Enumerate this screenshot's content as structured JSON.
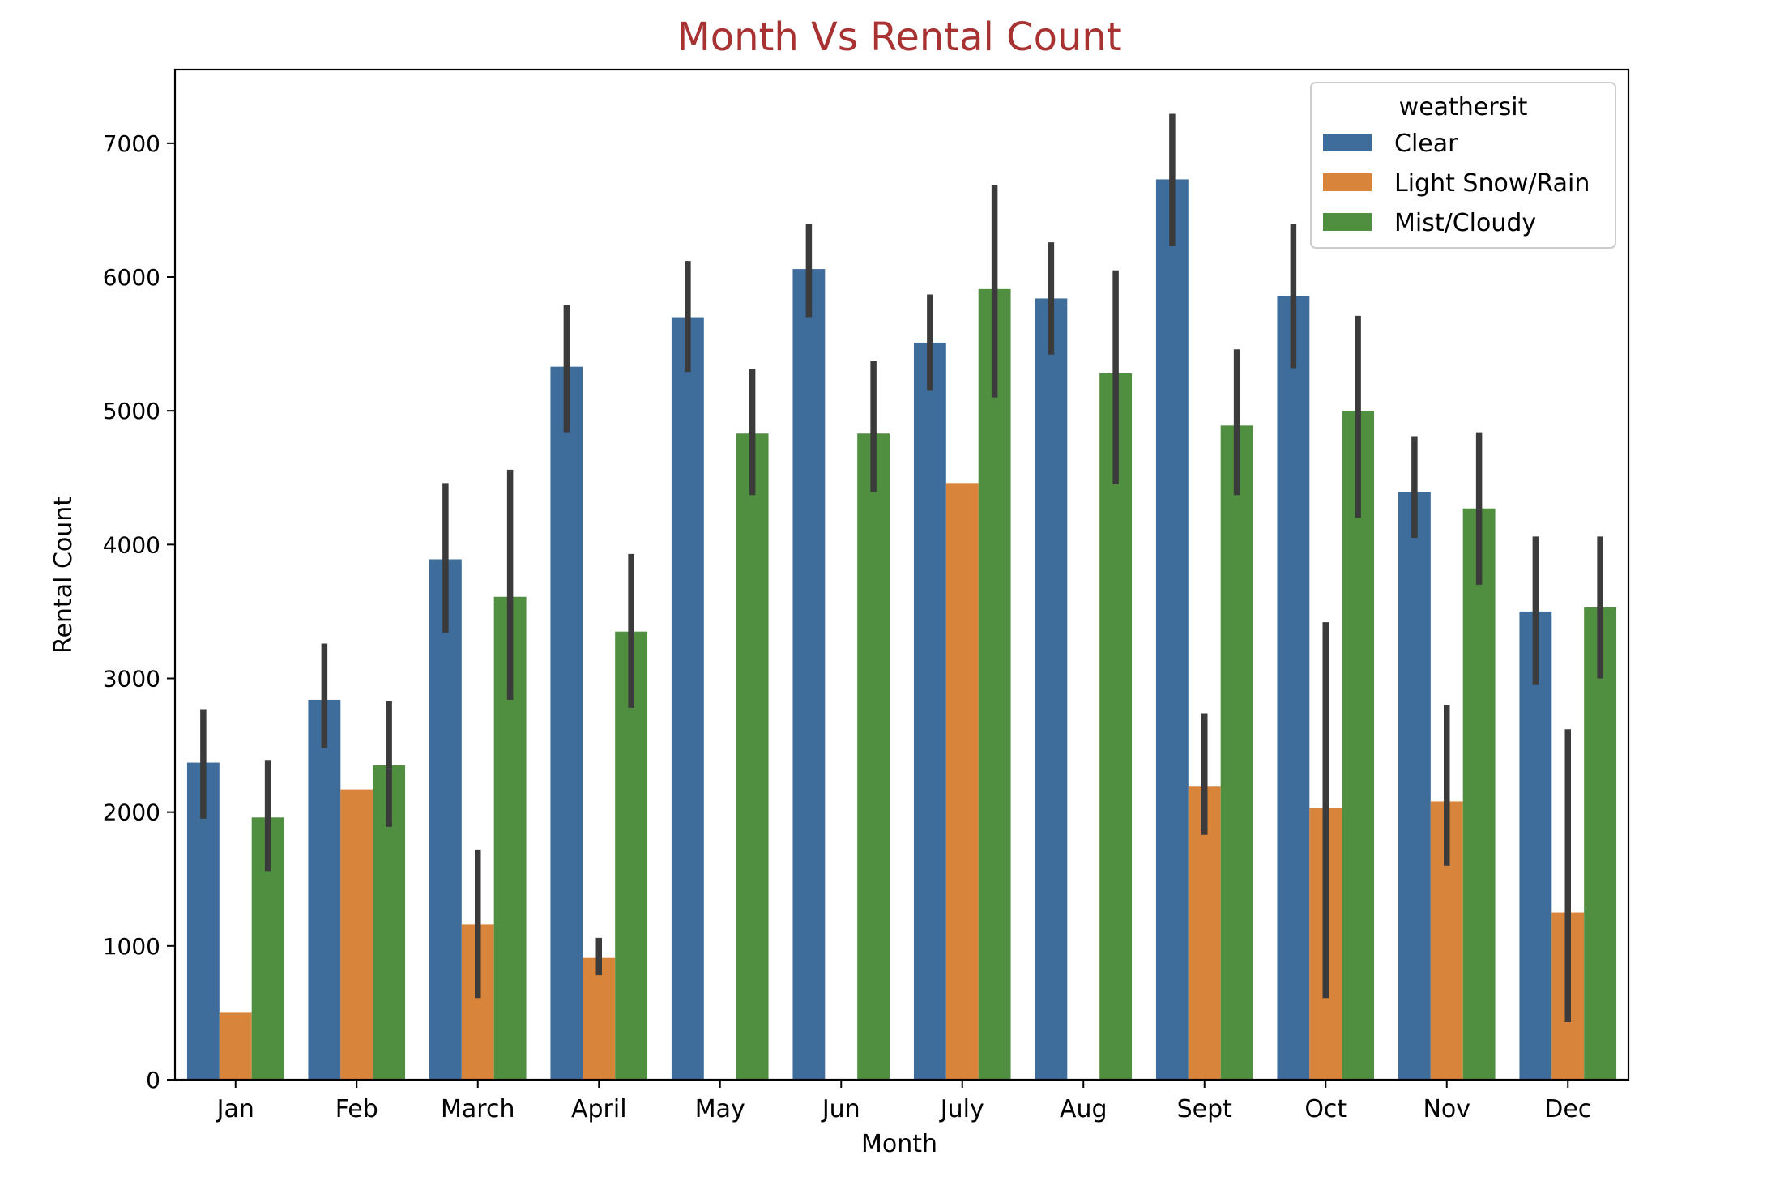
{
  "chart_data": {
    "type": "bar",
    "title": "Month Vs Rental Count",
    "title_color": "#a83232",
    "xlabel": "Month",
    "ylabel": "Rental Count",
    "ylim": [
      0,
      7550
    ],
    "yticks": [
      0,
      1000,
      2000,
      3000,
      4000,
      5000,
      6000,
      7000
    ],
    "categories": [
      "Jan",
      "Feb",
      "March",
      "April",
      "May",
      "Jun",
      "July",
      "Aug",
      "Sept",
      "Oct",
      "Nov",
      "Dec"
    ],
    "legend": {
      "title": "weathersit",
      "position": "top-right"
    },
    "series": [
      {
        "name": "Clear",
        "color": "#3e6d9c",
        "values": [
          2370,
          2840,
          3890,
          5330,
          5700,
          6060,
          5510,
          5840,
          6730,
          5860,
          4390,
          3500
        ],
        "ci": [
          [
            1950,
            2770
          ],
          [
            2480,
            3260
          ],
          [
            3340,
            4460
          ],
          [
            4840,
            5790
          ],
          [
            5290,
            6120
          ],
          [
            5700,
            6400
          ],
          [
            5150,
            5870
          ],
          [
            5420,
            6260
          ],
          [
            6230,
            7220
          ],
          [
            5320,
            6400
          ],
          [
            4050,
            4810
          ],
          [
            2950,
            4060
          ]
        ]
      },
      {
        "name": "Light Snow/Rain",
        "color": "#d9843b",
        "values": [
          500,
          2170,
          1160,
          910,
          null,
          null,
          4460,
          null,
          2190,
          2030,
          2080,
          1250
        ],
        "ci": [
          null,
          null,
          [
            610,
            1720
          ],
          [
            780,
            1060
          ],
          null,
          null,
          null,
          null,
          [
            1830,
            2740
          ],
          [
            610,
            3420
          ],
          [
            1600,
            2800
          ],
          [
            430,
            2620
          ]
        ]
      },
      {
        "name": "Mist/Cloudy",
        "color": "#4f8f3f",
        "values": [
          1960,
          2350,
          3610,
          3350,
          4830,
          4830,
          5910,
          5280,
          4890,
          5000,
          4270,
          3530
        ],
        "ci": [
          [
            1560,
            2390
          ],
          [
            1890,
            2830
          ],
          [
            2840,
            4560
          ],
          [
            2780,
            3930
          ],
          [
            4370,
            5310
          ],
          [
            4390,
            5370
          ],
          [
            5100,
            6690
          ],
          [
            4450,
            6050
          ],
          [
            4370,
            5460
          ],
          [
            4200,
            5710
          ],
          [
            3700,
            4840
          ],
          [
            3000,
            4060
          ]
        ]
      }
    ]
  }
}
